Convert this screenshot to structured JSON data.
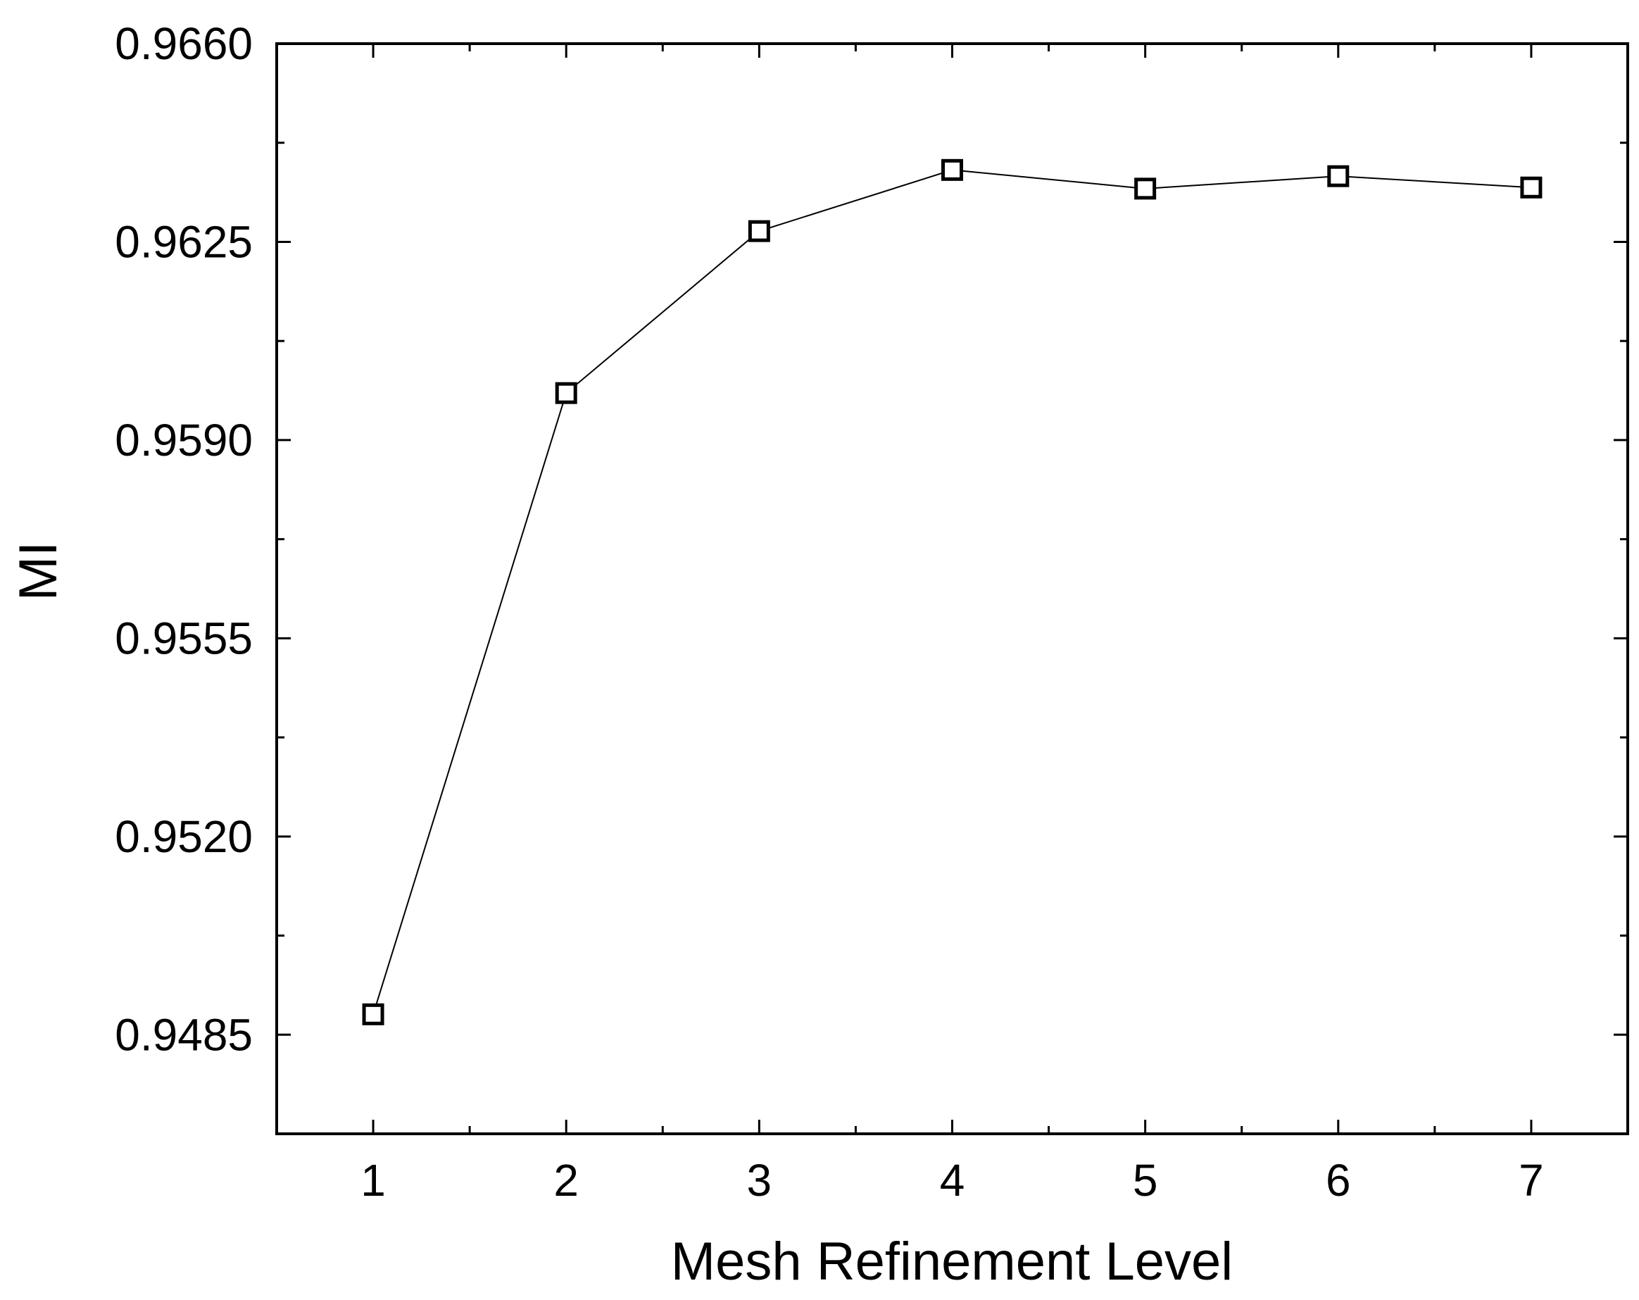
{
  "chart_data": {
    "type": "line",
    "title": "",
    "xlabel": "Mesh Refinement Level",
    "ylabel": "MI",
    "x": [
      1,
      2,
      3,
      4,
      5,
      6,
      7
    ],
    "series": [
      {
        "values": [
          0.94886,
          0.95983,
          0.96269,
          0.96377,
          0.96344,
          0.96366,
          0.96346
        ]
      }
    ],
    "xlim": [
      0.5,
      7.5
    ],
    "ylim": [
      0.94675,
      0.966
    ],
    "x_ticks": [
      "1",
      "2",
      "3",
      "4",
      "5",
      "6",
      "7"
    ],
    "y_ticks": [
      "0.9485",
      "0.9520",
      "0.9555",
      "0.9590",
      "0.9625",
      "0.9660"
    ],
    "marker": "open-square",
    "line_color": "#000000",
    "grid": false,
    "legend": "none"
  }
}
